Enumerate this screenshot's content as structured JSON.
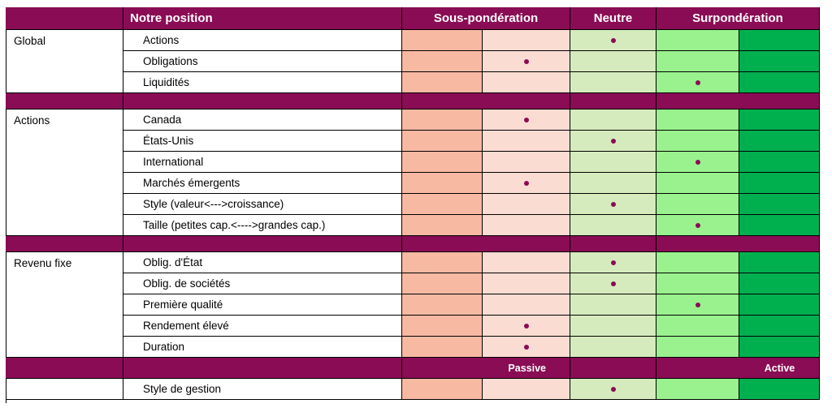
{
  "header": {
    "title": "Notre position",
    "under": "Sous-pondération",
    "neutral": "Neutre",
    "over": "Surpondération"
  },
  "sections": [
    {
      "category": "Global",
      "rows": [
        {
          "label": "Actions",
          "position": 3
        },
        {
          "label": "Obligations",
          "position": 2
        },
        {
          "label": "Liquidités",
          "position": 4
        }
      ]
    },
    {
      "category": "Actions",
      "rows": [
        {
          "label": "Canada",
          "position": 2
        },
        {
          "label": "États-Unis",
          "position": 3
        },
        {
          "label": "International",
          "position": 4
        },
        {
          "label": "Marchés émergents",
          "position": 2
        },
        {
          "label": "Style (valeur<--->croissance)",
          "position": 3
        },
        {
          "label": "Taille (petites cap.<---->grandes    cap.)",
          "position": 4
        }
      ]
    },
    {
      "category": "Revenu fixe",
      "rows": [
        {
          "label": "Oblig. d'État",
          "position": 3
        },
        {
          "label": "Oblig. de sociétés",
          "position": 3
        },
        {
          "label": "Première qualité",
          "position": 4
        },
        {
          "label": "Rendement élevé",
          "position": 2
        },
        {
          "label": "Duration",
          "position": 2
        }
      ]
    }
  ],
  "style_header": {
    "passive": "Passive",
    "active": "Active"
  },
  "style_row": {
    "label": "Style de gestion",
    "position": 3
  },
  "colors": {
    "header": "#8a0c55",
    "under_dark": "#f8b9a3",
    "under_light": "#fbdcd3",
    "neutral": "#d6ebbd",
    "over_light": "#99f28e",
    "over_dark": "#00b04f",
    "dot": "#8a0c55"
  }
}
